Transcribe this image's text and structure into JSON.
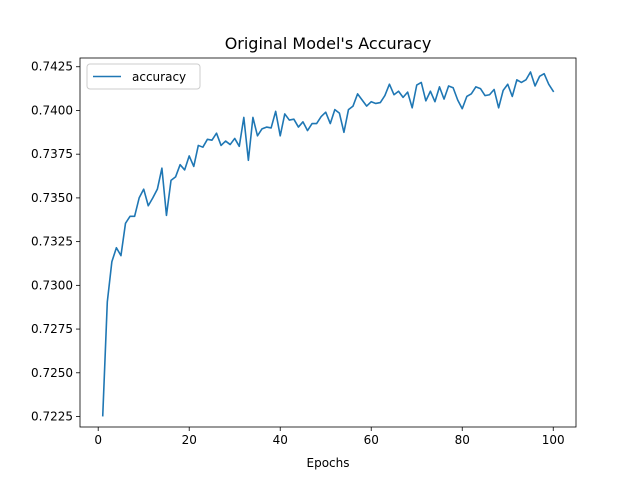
{
  "chart_data": {
    "type": "line",
    "title": "Original Model's Accuracy",
    "xlabel": "Epochs",
    "ylabel": "",
    "xlim": [
      -4,
      105
    ],
    "ylim": [
      0.7219,
      0.743
    ],
    "xticks": [
      0,
      20,
      40,
      60,
      80,
      100
    ],
    "yticks": [
      0.7225,
      0.725,
      0.7275,
      0.73,
      0.7325,
      0.735,
      0.7375,
      0.74,
      0.7425
    ],
    "grid": false,
    "legend": "top-left",
    "series": [
      {
        "name": "accuracy",
        "color": "#1f77b4",
        "x": [
          1,
          2,
          3,
          4,
          5,
          6,
          7,
          8,
          9,
          10,
          11,
          12,
          13,
          14,
          15,
          16,
          17,
          18,
          19,
          20,
          21,
          22,
          23,
          24,
          25,
          26,
          27,
          28,
          29,
          30,
          31,
          32,
          33,
          34,
          35,
          36,
          37,
          38,
          39,
          40,
          41,
          42,
          43,
          44,
          45,
          46,
          47,
          48,
          49,
          50,
          51,
          52,
          53,
          54,
          55,
          56,
          57,
          58,
          59,
          60,
          61,
          62,
          63,
          64,
          65,
          66,
          67,
          68,
          69,
          70,
          71,
          72,
          73,
          74,
          75,
          76,
          77,
          78,
          79,
          80,
          81,
          82,
          83,
          84,
          85,
          86,
          87,
          88,
          89,
          90,
          91,
          92,
          93,
          94,
          95,
          96,
          97,
          98,
          99,
          100
        ],
        "values": [
          0.72255,
          0.72905,
          0.73135,
          0.73215,
          0.7317,
          0.73355,
          0.73395,
          0.73395,
          0.735,
          0.7355,
          0.73455,
          0.735,
          0.7355,
          0.7367,
          0.734,
          0.736,
          0.7362,
          0.7369,
          0.7366,
          0.7374,
          0.7368,
          0.738,
          0.7379,
          0.73835,
          0.7383,
          0.7387,
          0.738,
          0.73825,
          0.73805,
          0.7384,
          0.73795,
          0.7396,
          0.73715,
          0.7396,
          0.73855,
          0.73895,
          0.73905,
          0.739,
          0.73995,
          0.73855,
          0.7398,
          0.73945,
          0.7395,
          0.73905,
          0.73935,
          0.73885,
          0.73925,
          0.73925,
          0.73965,
          0.7399,
          0.73925,
          0.74005,
          0.73985,
          0.73875,
          0.74005,
          0.74025,
          0.74095,
          0.7406,
          0.74025,
          0.7405,
          0.7404,
          0.74045,
          0.74085,
          0.7415,
          0.7409,
          0.7411,
          0.74075,
          0.74105,
          0.74015,
          0.74145,
          0.7416,
          0.74055,
          0.7411,
          0.7405,
          0.74135,
          0.74065,
          0.7414,
          0.7413,
          0.7406,
          0.7401,
          0.7408,
          0.74095,
          0.74135,
          0.74125,
          0.74085,
          0.7409,
          0.7412,
          0.74015,
          0.74115,
          0.7415,
          0.7408,
          0.74175,
          0.7416,
          0.74175,
          0.7422,
          0.7414,
          0.74195,
          0.7421,
          0.7415,
          0.7411
        ]
      }
    ]
  }
}
